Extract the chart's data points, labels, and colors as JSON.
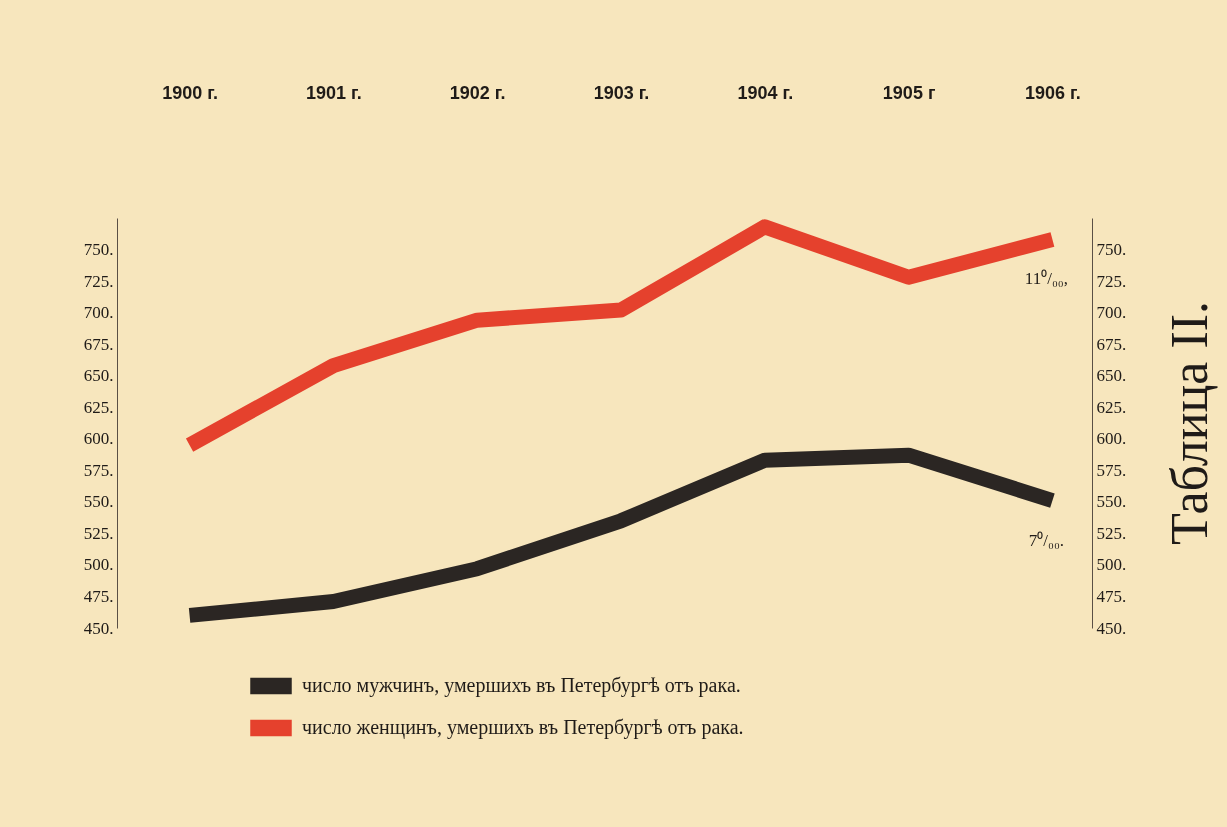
{
  "chart_data": {
    "type": "line",
    "title": "Таблица II.",
    "categories": [
      "1900 г.",
      "1901 г.",
      "1902 г.",
      "1903 г.",
      "1904 г.",
      "1905 г",
      "1906 г."
    ],
    "series": [
      {
        "name": "число мужчинъ, умершихъ въ Петербургѣ отъ рака.",
        "color": "#2b2623",
        "values": [
          460,
          471,
          497,
          535,
          583,
          587,
          551
        ]
      },
      {
        "name": "число женщинъ, умершихъ въ Петербургѣ отъ рака.",
        "color": "#e5412d",
        "values": [
          595,
          658,
          694,
          702,
          768,
          728,
          758
        ]
      }
    ],
    "ylim": [
      450,
      775
    ],
    "yticks": [
      {
        "value": 450,
        "label": "450."
      },
      {
        "value": 475,
        "label": "475."
      },
      {
        "value": 500,
        "label": "500."
      },
      {
        "value": 525,
        "label": "525."
      },
      {
        "value": 550,
        "label": "550."
      },
      {
        "value": 575,
        "label": "575."
      },
      {
        "value": 600,
        "label": "600."
      },
      {
        "value": 625,
        "label": "625."
      },
      {
        "value": 650,
        "label": "650."
      },
      {
        "value": 675,
        "label": "675."
      },
      {
        "value": 700,
        "label": "700."
      },
      {
        "value": 725,
        "label": "725."
      },
      {
        "value": 750,
        "label": "750."
      }
    ],
    "y2lim": [
      450,
      775
    ],
    "y2ticks": [
      {
        "value": 450,
        "label": "450."
      },
      {
        "value": 475,
        "label": "475."
      },
      {
        "value": 500,
        "label": "500."
      },
      {
        "value": 525,
        "label": "525."
      },
      {
        "value": 550,
        "label": "550."
      },
      {
        "value": 575,
        "label": "575."
      },
      {
        "value": 600,
        "label": "600."
      },
      {
        "value": 625,
        "label": "625."
      },
      {
        "value": 650,
        "label": "650."
      },
      {
        "value": 675,
        "label": "675."
      },
      {
        "value": 700,
        "label": "700."
      },
      {
        "value": 725,
        "label": "725."
      },
      {
        "value": 750,
        "label": "750."
      }
    ],
    "annotations": [
      {
        "text": "11⁰/₀₀,",
        "x": "1906 г.",
        "y": 758
      },
      {
        "text": "7⁰/₀₀.",
        "x": "1906 г.",
        "y": 551
      }
    ],
    "legend": "bottom left",
    "line_style": "solid"
  }
}
